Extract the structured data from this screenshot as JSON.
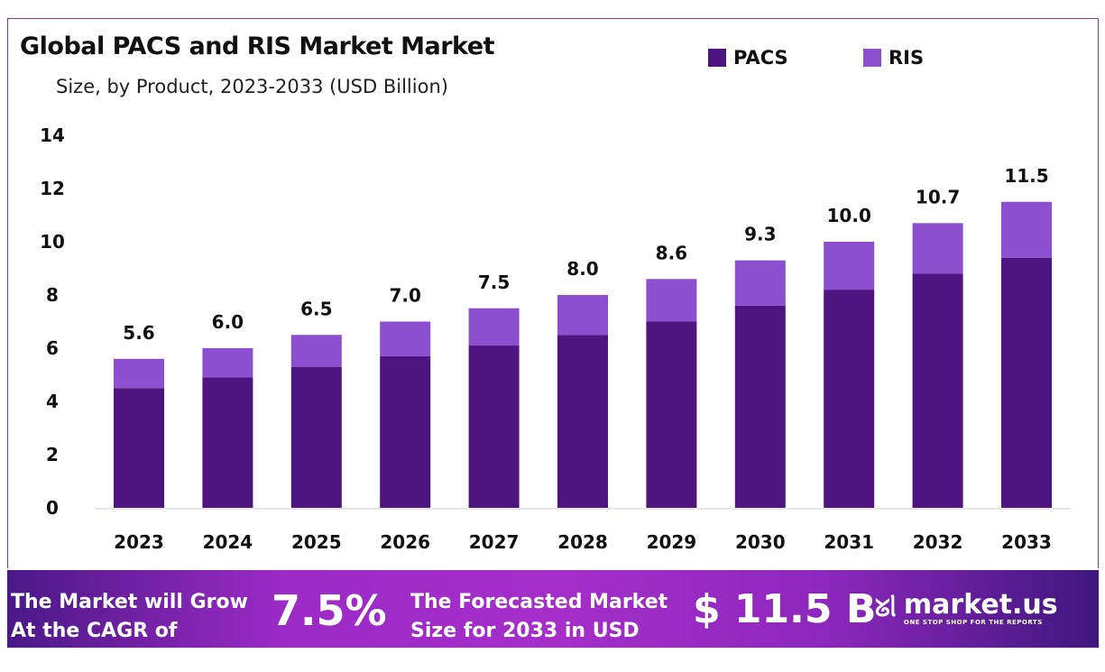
{
  "chart_data": {
    "type": "bar",
    "stacked": true,
    "title": "Global PACS and RIS Market Market",
    "subtitle": "Size, by Product, 2023-2033 (USD Billion)",
    "categories": [
      "2023",
      "2024",
      "2025",
      "2026",
      "2027",
      "2028",
      "2029",
      "2030",
      "2031",
      "2032",
      "2033"
    ],
    "series": [
      {
        "name": "PACS",
        "color": "#4e1580",
        "values": [
          4.5,
          4.9,
          5.3,
          5.7,
          6.1,
          6.5,
          7.0,
          7.6,
          8.2,
          8.8,
          9.4
        ]
      },
      {
        "name": "RIS",
        "color": "#8b4fcf",
        "values": [
          1.1,
          1.1,
          1.2,
          1.3,
          1.4,
          1.5,
          1.6,
          1.7,
          1.8,
          1.9,
          2.1
        ]
      }
    ],
    "totals": [
      "5.6",
      "6.0",
      "6.5",
      "7.0",
      "7.5",
      "8.0",
      "8.6",
      "9.3",
      "10.0",
      "10.7",
      "11.5"
    ],
    "ylim": [
      0,
      14
    ],
    "yticks": [
      "0",
      "2",
      "4",
      "6",
      "8",
      "10",
      "12",
      "14"
    ],
    "grid": false,
    "legend": "top-right"
  },
  "banner": {
    "cagr_text": "The Market will Grow At the CAGR of",
    "cagr_value": "7.5%",
    "forecast_text": "The Forecasted Market Size for 2033 in USD",
    "forecast_value": "$ 11.5 B",
    "logo_name": "market.us",
    "logo_tagline": "ONE STOP SHOP FOR THE REPORTS"
  }
}
